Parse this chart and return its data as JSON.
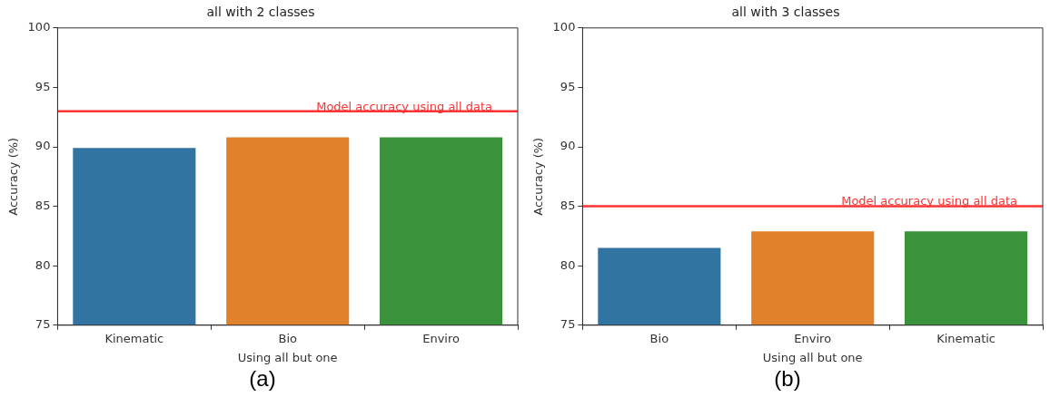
{
  "chart_data": [
    {
      "type": "bar",
      "title": "all with 2 classes",
      "xlabel": "Using all but one",
      "ylabel": "Accuracy (%)",
      "categories": [
        "Kinematic",
        "Bio",
        "Enviro"
      ],
      "values": [
        89.9,
        90.8,
        90.8
      ],
      "colors": [
        "#3274a1",
        "#e1812c",
        "#3a923a"
      ],
      "ylim": [
        75,
        100
      ],
      "yticks": [
        75,
        80,
        85,
        90,
        95,
        100
      ],
      "grid": false,
      "legend": false,
      "ref_lines": [
        {
          "axis": "y",
          "value": 93.0,
          "label": "Model accuracy using all data",
          "color": "#ff3333"
        }
      ],
      "annotations": [
        "(a)"
      ]
    },
    {
      "type": "bar",
      "title": "all with 3 classes",
      "xlabel": "Using all but one",
      "ylabel": "Accuracy (%)",
      "categories": [
        "Bio",
        "Enviro",
        "Kinematic"
      ],
      "values": [
        81.5,
        82.9,
        82.9
      ],
      "colors": [
        "#3274a1",
        "#e1812c",
        "#3a923a"
      ],
      "ylim": [
        75,
        100
      ],
      "yticks": [
        75,
        80,
        85,
        90,
        95,
        100
      ],
      "grid": false,
      "legend": false,
      "ref_lines": [
        {
          "axis": "y",
          "value": 85.0,
          "label": "Model accuracy using all data",
          "color": "#ff3333"
        }
      ],
      "annotations": [
        "(b)"
      ]
    }
  ]
}
